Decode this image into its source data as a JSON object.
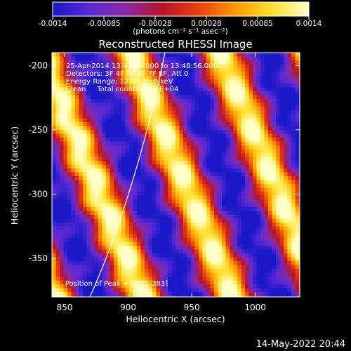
{
  "colorbar": {
    "ticks": [
      "-0.0014",
      "-0.00085",
      "-0.00028",
      "0.00028",
      "0.00085",
      "0.0014"
    ],
    "unit_label": "(photons cm⁻² s⁻¹ asec⁻²)",
    "colors": [
      "#1a18c8",
      "#5a2ad6",
      "#8a2aa6",
      "#b81428",
      "#e84010",
      "#ff9a00",
      "#ffe030",
      "#ffffc8"
    ]
  },
  "title": "Reconstructed RHESSI Image",
  "info_lines": [
    "25-Apr-2014 13:42:58.000 to 13:48:56.000",
    "Detectors: 3F 4F 5F 6F 7F 8F, Att 0",
    "Energy Range: 12.0 - 25.0 keV",
    "Clean     Total counts: 1.75E+04"
  ],
  "peak_label": "Position of Peak = [850,-383]",
  "footer_date": "14-May-2022 20:44",
  "chart_data": {
    "type": "heatmap",
    "title": "Reconstructed RHESSI Image",
    "xlabel": "Heliocentric X (arcsec)",
    "ylabel": "Heliocentric Y (arcsec)",
    "xlim": [
      840,
      1035
    ],
    "ylim": [
      -380,
      -190
    ],
    "xticks": [
      850,
      900,
      950,
      1000
    ],
    "yticks": [
      -200,
      -250,
      -300,
      -350
    ],
    "peak": [
      850,
      -383
    ],
    "colorbar_range": [
      -0.0014,
      0.0014
    ]
  }
}
